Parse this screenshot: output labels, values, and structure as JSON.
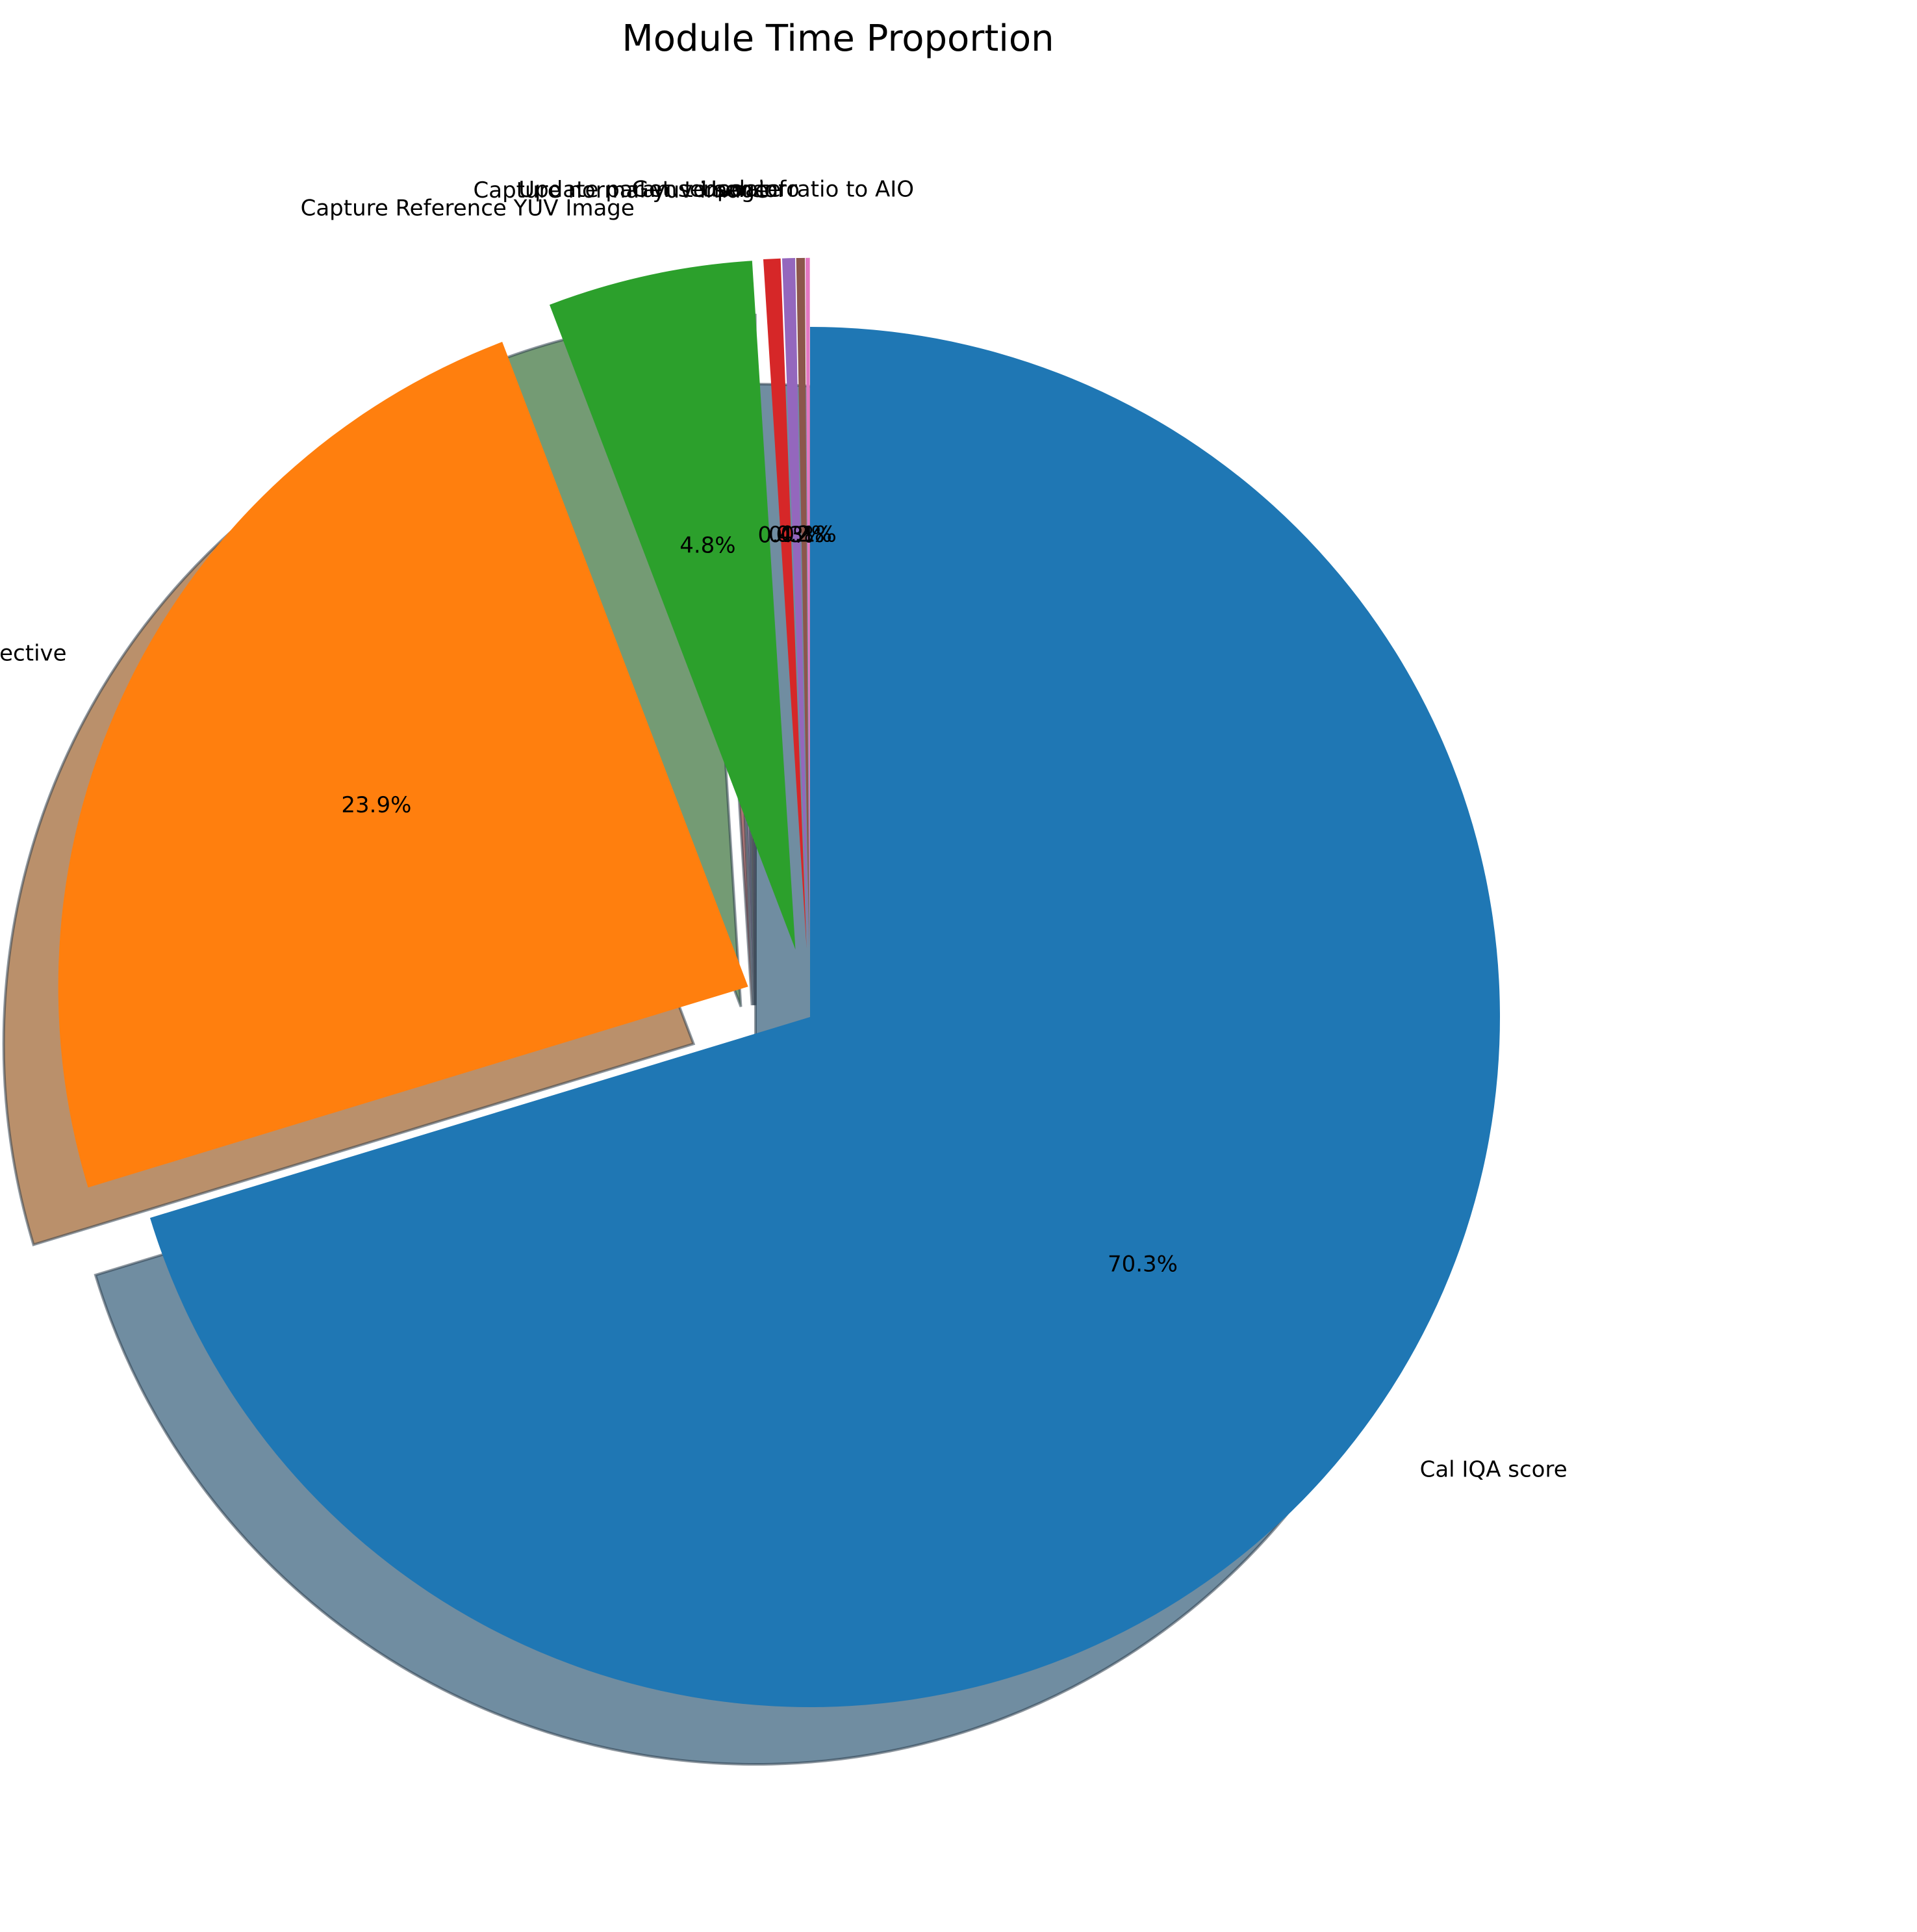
{
  "chart_data": {
    "type": "pie",
    "title": "Module Time Proportion",
    "start_angle_deg": 90,
    "direction": "clockwise",
    "shadow": true,
    "slices": [
      {
        "label": "Cal IQA score",
        "value": 70.3,
        "pct_text": "70.3%",
        "color": "#1f77b4",
        "explode": 0
      },
      {
        "label": "Wait for register effective",
        "value": 23.9,
        "pct_text": "23.9%",
        "color": "#ff7f0e",
        "explode": 0.1
      },
      {
        "label": "Capture Reference YUV Image",
        "value": 4.8,
        "pct_text": "4.8%",
        "color": "#2ca02c",
        "explode": 0.1
      },
      {
        "label": "Capture normal yuv image",
        "value": 0.4,
        "pct_text": "0.4%",
        "color": "#d62728",
        "explode": 0.1
      },
      {
        "label": "Update param to sensor",
        "value": 0.3,
        "pct_text": "0.3%",
        "color": "#9467bd",
        "explode": 0.1
      },
      {
        "label": "Get sensor info",
        "value": 0.2,
        "pct_text": "0.2%",
        "color": "#8c564b",
        "explode": 0.1
      },
      {
        "label": "Update ratio to AIO",
        "value": 0.1,
        "pct_text": "0.1%",
        "color": "#e377c2",
        "explode": 0.1
      }
    ]
  }
}
